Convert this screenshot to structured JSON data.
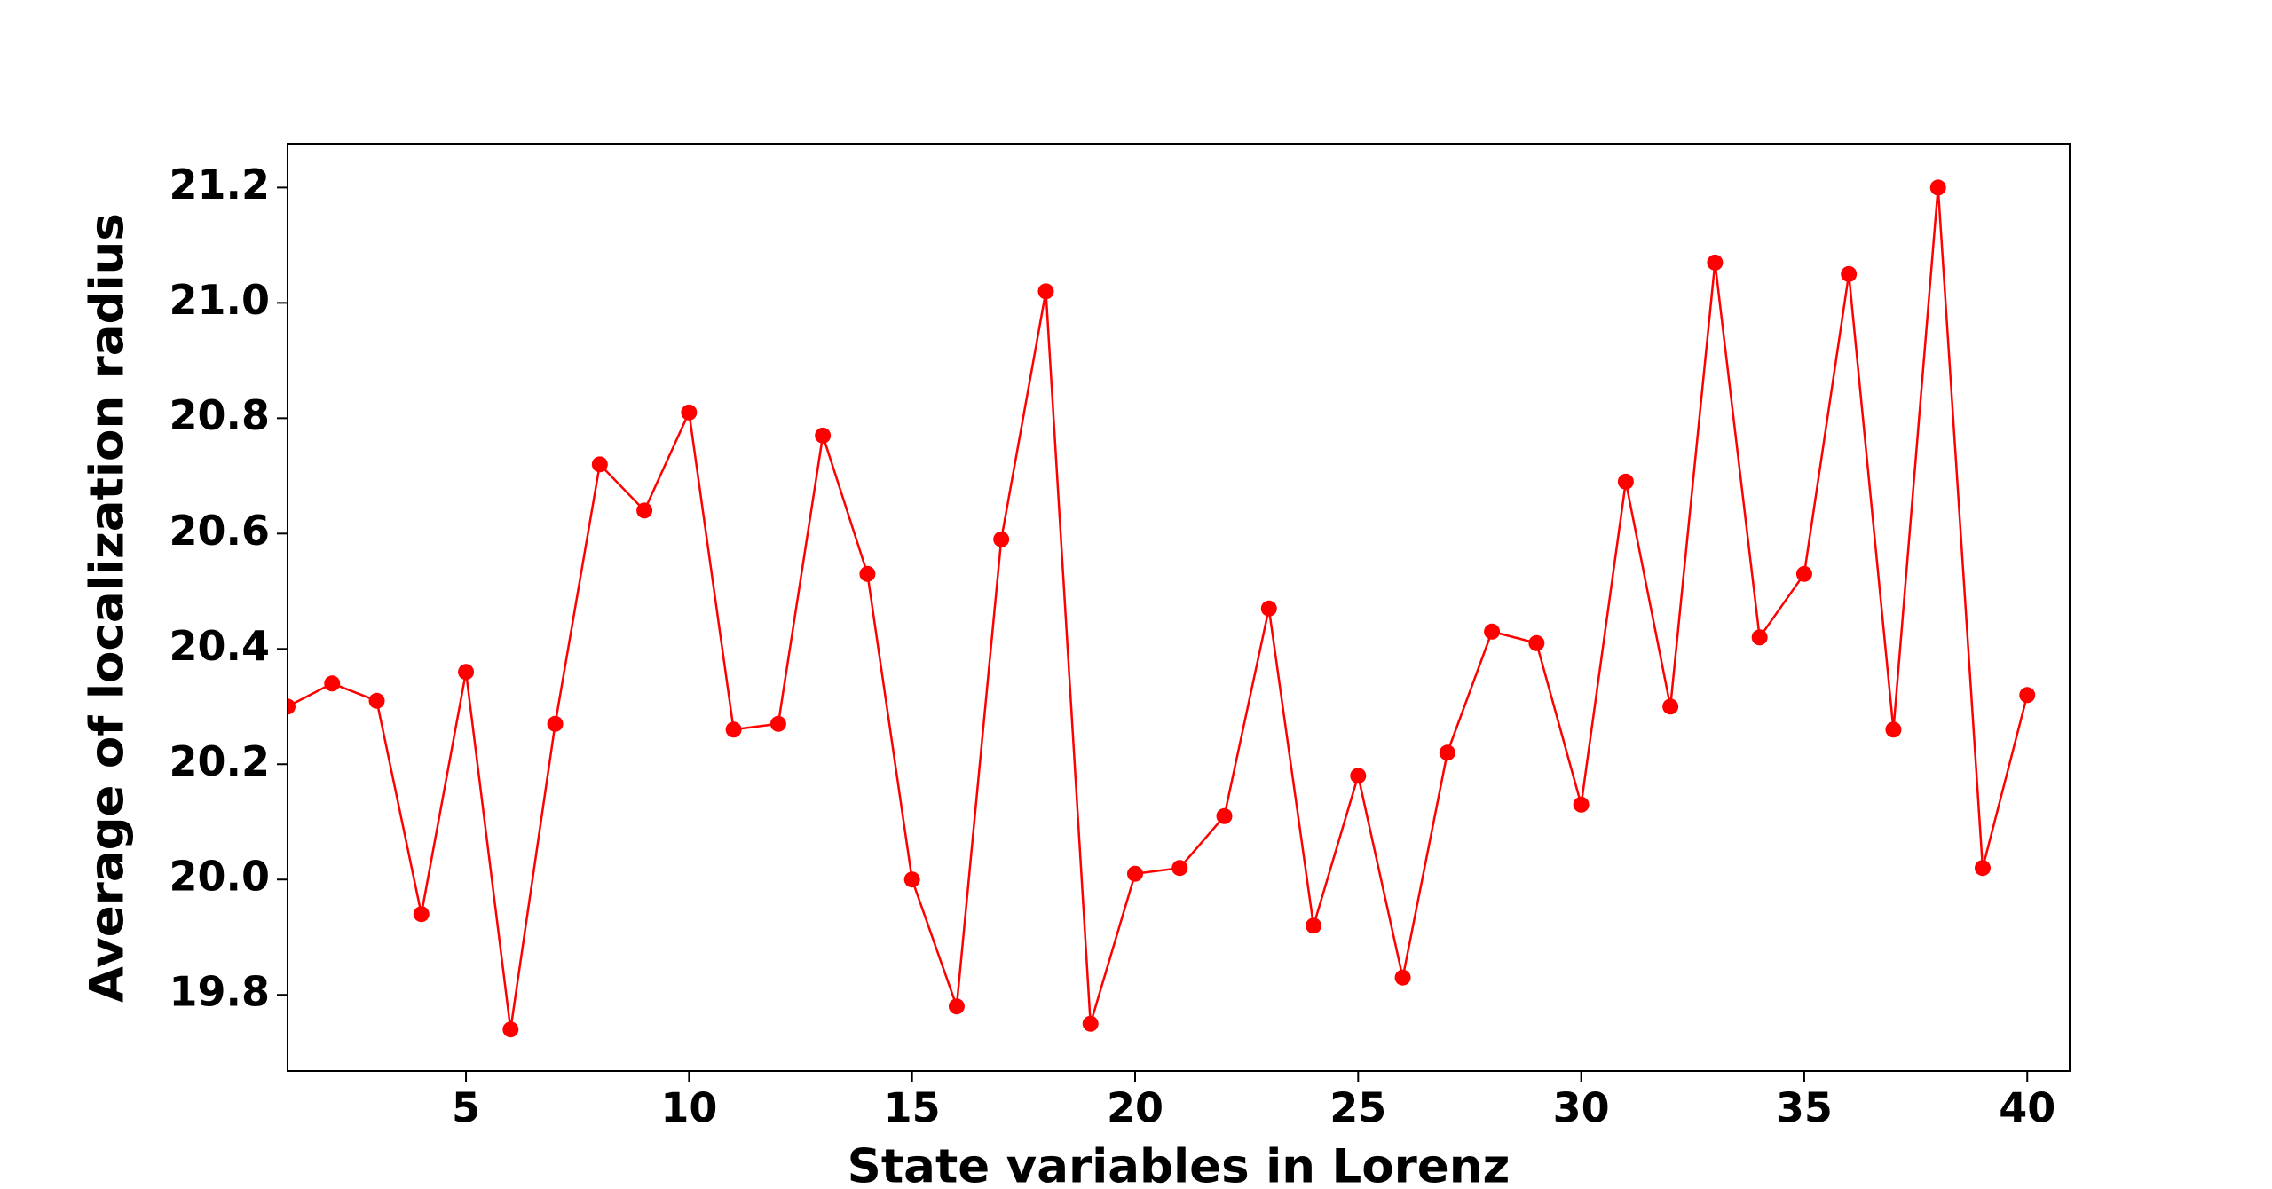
{
  "chart_data": {
    "type": "line",
    "xlabel": "State variables in Lorenz",
    "ylabel": "Average of localization radius",
    "x": [
      1,
      2,
      3,
      4,
      5,
      6,
      7,
      8,
      9,
      10,
      11,
      12,
      13,
      14,
      15,
      16,
      17,
      18,
      19,
      20,
      21,
      22,
      23,
      24,
      25,
      26,
      27,
      28,
      29,
      30,
      31,
      32,
      33,
      34,
      35,
      36,
      37,
      38,
      39,
      40
    ],
    "series": [
      {
        "color": "#ff0000",
        "values": [
          20.3,
          20.34,
          20.31,
          19.94,
          20.36,
          19.74,
          20.27,
          20.72,
          20.64,
          20.81,
          20.26,
          20.27,
          20.77,
          20.53,
          20.0,
          19.78,
          20.59,
          21.02,
          19.75,
          20.01,
          20.02,
          20.11,
          20.47,
          19.92,
          20.18,
          19.83,
          20.22,
          20.43,
          20.41,
          20.13,
          20.69,
          20.3,
          21.07,
          20.42,
          20.53,
          21.05,
          20.26,
          21.2,
          20.02,
          20.32
        ]
      }
    ],
    "xlim": [
      1,
      40.95
    ],
    "ylim": [
      19.668,
      21.276
    ],
    "xticks": [
      5,
      10,
      15,
      20,
      25,
      30,
      35,
      40
    ],
    "yticks": [
      {
        "value": 19.8,
        "label": "19.8"
      },
      {
        "value": 20.0,
        "label": "20.0"
      },
      {
        "value": 20.2,
        "label": "20.2"
      },
      {
        "value": 20.4,
        "label": "20.4"
      },
      {
        "value": 20.6,
        "label": "20.6"
      },
      {
        "value": 20.8,
        "label": "20.8"
      },
      {
        "value": 21.0,
        "label": "21.0"
      },
      {
        "value": 21.2,
        "label": "21.2"
      }
    ]
  }
}
